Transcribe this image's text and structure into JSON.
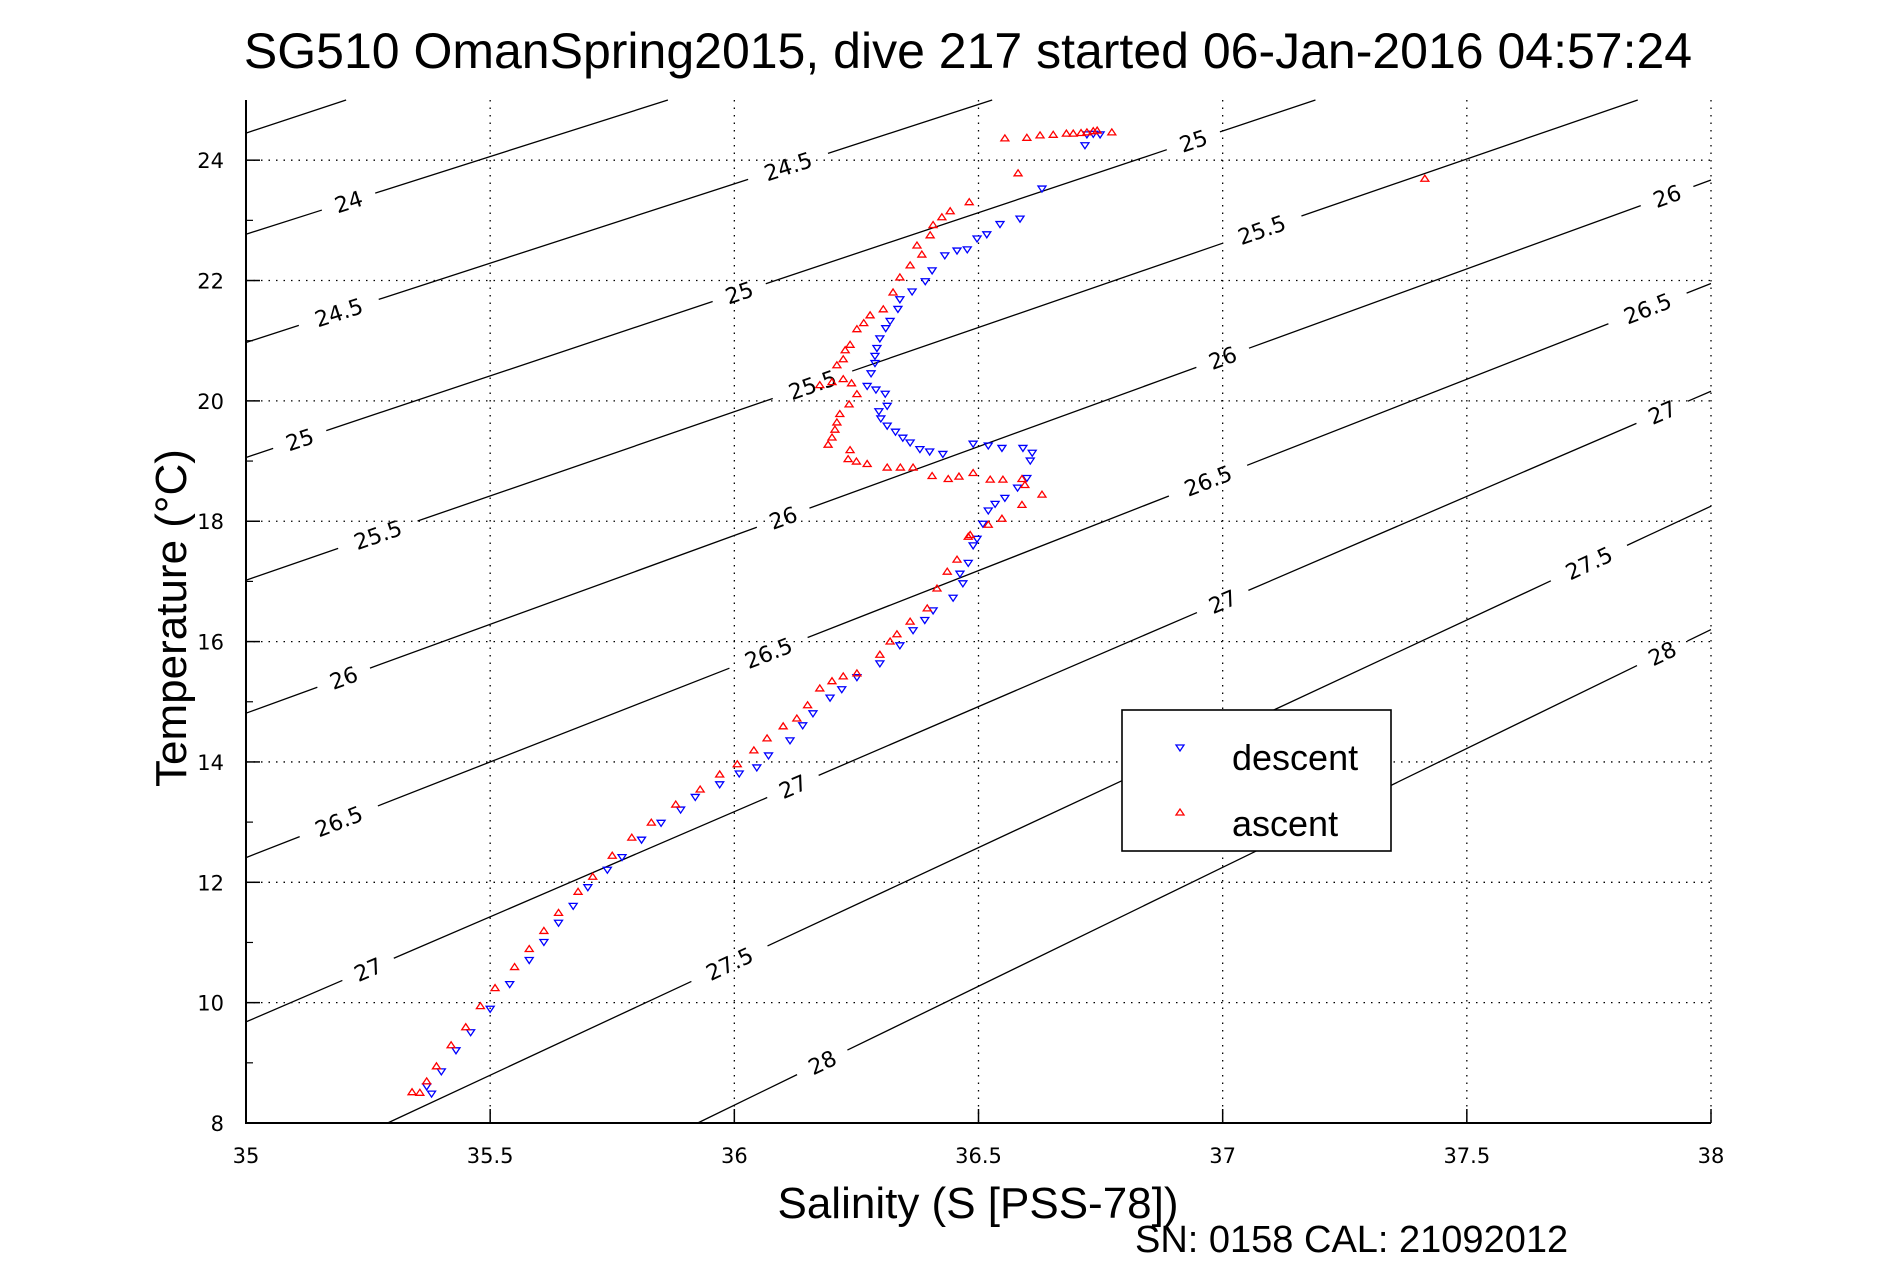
{
  "chart_data": {
    "type": "scatter",
    "title": "SG510 OmanSpring2015, dive 217 started 06-Jan-2016 04:57:24",
    "xlabel": "Salinity (S [PSS-78])",
    "ylabel": "Temperature (°C)",
    "footer": "SN: 0158  CAL: 21092012",
    "xlim": [
      35,
      38
    ],
    "ylim": [
      8,
      25
    ],
    "grid": true,
    "legend_position": "center-right",
    "x_ticks": [
      35,
      35.5,
      36,
      36.5,
      37,
      37.5,
      38
    ],
    "x_tick_labels": [
      "35",
      "35.5",
      "36",
      "36.5",
      "37",
      "37.5",
      "38"
    ],
    "y_ticks": [
      8,
      10,
      12,
      14,
      16,
      18,
      20,
      22,
      24
    ],
    "y_tick_labels": [
      "8",
      "10",
      "12",
      "14",
      "16",
      "18",
      "20",
      "22",
      "24"
    ],
    "y_minor_ticks": [
      9,
      11,
      13,
      15,
      17,
      19,
      21,
      23
    ],
    "isopycnals": [
      {
        "sigma": 23.5,
        "points": [
          [
            35,
            24.45
          ],
          [
            35.205,
            25
          ]
        ],
        "labels": []
      },
      {
        "sigma": 24,
        "points": [
          [
            35,
            22.77
          ],
          [
            35.864,
            25
          ]
        ],
        "labels": [
          {
            "text": "24",
            "s": 35.21
          }
        ]
      },
      {
        "sigma": 24.5,
        "points": [
          [
            35,
            20.97
          ],
          [
            36.528,
            25
          ]
        ],
        "labels": [
          {
            "text": "24.5",
            "s": 35.19
          },
          {
            "text": "24.5",
            "s": 36.11
          }
        ]
      },
      {
        "sigma": 25,
        "points": [
          [
            35,
            19.06
          ],
          [
            37.19,
            25
          ]
        ],
        "labels": [
          {
            "text": "25",
            "s": 35.11
          },
          {
            "text": "25",
            "s": 36.01
          },
          {
            "text": "25",
            "s": 36.94
          }
        ]
      },
      {
        "sigma": 25.5,
        "points": [
          [
            35,
            17.02
          ],
          [
            37.85,
            25
          ]
        ],
        "labels": [
          {
            "text": "25.5",
            "s": 35.27
          },
          {
            "text": "25.5",
            "s": 36.16
          },
          {
            "text": "25.5",
            "s": 37.08
          }
        ]
      },
      {
        "sigma": 26,
        "points": [
          [
            35,
            14.81
          ],
          [
            38,
            23.67
          ]
        ],
        "labels": [
          {
            "text": "26",
            "s": 35.2
          },
          {
            "text": "26",
            "s": 36.1
          },
          {
            "text": "26",
            "s": 37.0
          },
          {
            "text": "26",
            "s": 37.91
          }
        ]
      },
      {
        "sigma": 26.5,
        "points": [
          [
            35,
            12.41
          ],
          [
            38,
            21.95
          ]
        ],
        "labels": [
          {
            "text": "26.5",
            "s": 35.19
          },
          {
            "text": "26.5",
            "s": 36.07
          },
          {
            "text": "26.5",
            "s": 36.97
          },
          {
            "text": "26.5",
            "s": 37.87
          }
        ]
      },
      {
        "sigma": 27,
        "points": [
          [
            35,
            9.68
          ],
          [
            38,
            20.16
          ]
        ],
        "labels": [
          {
            "text": "27",
            "s": 35.25
          },
          {
            "text": "27",
            "s": 36.12
          },
          {
            "text": "27",
            "s": 37.0
          },
          {
            "text": "27",
            "s": 37.9
          }
        ]
      },
      {
        "sigma": 27.5,
        "points": [
          [
            35.29,
            8
          ],
          [
            38,
            18.25
          ]
        ],
        "labels": [
          {
            "text": "27.5",
            "s": 35.99
          },
          {
            "text": "27.5",
            "s": 37.75
          }
        ]
      },
      {
        "sigma": 28,
        "points": [
          [
            35.925,
            8
          ],
          [
            38,
            16.2
          ]
        ],
        "labels": [
          {
            "text": "28",
            "s": 36.18
          },
          {
            "text": "28",
            "s": 37.9
          }
        ]
      }
    ],
    "series": [
      {
        "name": "descent",
        "color": "#0000ff",
        "marker": "triangle-down",
        "points": [
          [
            35.38,
            8.48
          ],
          [
            35.37,
            8.6
          ],
          [
            35.4,
            8.85
          ],
          [
            35.43,
            9.2
          ],
          [
            35.46,
            9.5
          ],
          [
            35.5,
            9.89
          ],
          [
            35.54,
            10.3
          ],
          [
            35.58,
            10.7
          ],
          [
            35.61,
            11.0
          ],
          [
            35.64,
            11.32
          ],
          [
            35.67,
            11.6
          ],
          [
            35.7,
            11.91
          ],
          [
            35.74,
            12.2
          ],
          [
            35.77,
            12.41
          ],
          [
            35.81,
            12.7
          ],
          [
            35.85,
            12.98
          ],
          [
            35.89,
            13.2
          ],
          [
            35.92,
            13.41
          ],
          [
            35.97,
            13.62
          ],
          [
            36.01,
            13.8
          ],
          [
            36.046,
            13.9
          ],
          [
            36.07,
            14.1
          ],
          [
            36.114,
            14.35
          ],
          [
            36.14,
            14.6
          ],
          [
            36.161,
            14.8
          ],
          [
            36.196,
            15.06
          ],
          [
            36.22,
            15.2
          ],
          [
            36.251,
            15.4
          ],
          [
            36.298,
            15.63
          ],
          [
            36.339,
            15.93
          ],
          [
            36.366,
            16.18
          ],
          [
            36.39,
            16.35
          ],
          [
            36.407,
            16.51
          ],
          [
            36.448,
            16.72
          ],
          [
            36.468,
            16.96
          ],
          [
            36.462,
            17.12
          ],
          [
            36.479,
            17.3
          ],
          [
            36.489,
            17.59
          ],
          [
            36.497,
            17.7
          ],
          [
            36.509,
            17.95
          ],
          [
            36.52,
            18.17
          ],
          [
            36.534,
            18.28
          ],
          [
            36.554,
            18.38
          ],
          [
            36.58,
            18.55
          ],
          [
            36.599,
            18.71
          ],
          [
            36.606,
            19.0
          ],
          [
            36.61,
            19.13
          ],
          [
            36.591,
            19.21
          ],
          [
            36.548,
            19.21
          ],
          [
            36.52,
            19.25
          ],
          [
            36.489,
            19.28
          ],
          [
            36.427,
            19.11
          ],
          [
            36.4,
            19.15
          ],
          [
            36.38,
            19.19
          ],
          [
            36.36,
            19.3
          ],
          [
            36.345,
            19.38
          ],
          [
            36.33,
            19.48
          ],
          [
            36.313,
            19.58
          ],
          [
            36.3,
            19.7
          ],
          [
            36.296,
            19.82
          ],
          [
            36.313,
            19.91
          ],
          [
            36.309,
            20.11
          ],
          [
            36.29,
            20.18
          ],
          [
            36.272,
            20.24
          ],
          [
            36.28,
            20.45
          ],
          [
            36.288,
            20.62
          ],
          [
            36.292,
            20.87
          ],
          [
            36.288,
            20.74
          ],
          [
            36.298,
            21.03
          ],
          [
            36.31,
            21.2
          ],
          [
            36.319,
            21.32
          ],
          [
            36.335,
            21.52
          ],
          [
            36.339,
            21.68
          ],
          [
            36.364,
            21.81
          ],
          [
            36.391,
            21.98
          ],
          [
            36.405,
            22.16
          ],
          [
            36.431,
            22.41
          ],
          [
            36.456,
            22.49
          ],
          [
            36.477,
            22.51
          ],
          [
            36.497,
            22.69
          ],
          [
            36.517,
            22.76
          ],
          [
            36.544,
            22.93
          ],
          [
            36.585,
            23.02
          ],
          [
            36.63,
            23.52
          ],
          [
            36.718,
            24.24
          ],
          [
            36.722,
            24.42
          ],
          [
            36.735,
            24.43
          ],
          [
            36.749,
            24.42
          ]
        ]
      },
      {
        "name": "ascent",
        "color": "#ff0000",
        "marker": "triangle-up",
        "points": [
          [
            35.34,
            8.52
          ],
          [
            35.356,
            8.51
          ],
          [
            35.37,
            8.7
          ],
          [
            35.39,
            8.95
          ],
          [
            35.42,
            9.3
          ],
          [
            35.45,
            9.6
          ],
          [
            35.48,
            9.95
          ],
          [
            35.51,
            10.25
          ],
          [
            35.55,
            10.6
          ],
          [
            35.58,
            10.9
          ],
          [
            35.61,
            11.2
          ],
          [
            35.64,
            11.5
          ],
          [
            35.68,
            11.85
          ],
          [
            35.71,
            12.1
          ],
          [
            35.75,
            12.45
          ],
          [
            35.79,
            12.75
          ],
          [
            35.83,
            13.0
          ],
          [
            35.88,
            13.3
          ],
          [
            35.93,
            13.55
          ],
          [
            35.97,
            13.8
          ],
          [
            36.006,
            13.97
          ],
          [
            36.04,
            14.2
          ],
          [
            36.067,
            14.4
          ],
          [
            36.1,
            14.6
          ],
          [
            36.128,
            14.73
          ],
          [
            36.15,
            14.95
          ],
          [
            36.175,
            15.23
          ],
          [
            36.2,
            15.35
          ],
          [
            36.223,
            15.43
          ],
          [
            36.251,
            15.48
          ],
          [
            36.298,
            15.79
          ],
          [
            36.319,
            16.01
          ],
          [
            36.333,
            16.13
          ],
          [
            36.36,
            16.34
          ],
          [
            36.395,
            16.56
          ],
          [
            36.415,
            16.89
          ],
          [
            36.436,
            17.17
          ],
          [
            36.456,
            17.37
          ],
          [
            36.479,
            17.75
          ],
          [
            36.483,
            17.78
          ],
          [
            36.52,
            17.95
          ],
          [
            36.548,
            18.05
          ],
          [
            36.589,
            18.28
          ],
          [
            36.63,
            18.45
          ],
          [
            36.595,
            18.61
          ],
          [
            36.589,
            18.71
          ],
          [
            36.55,
            18.7
          ],
          [
            36.524,
            18.7
          ],
          [
            36.489,
            18.81
          ],
          [
            36.46,
            18.75
          ],
          [
            36.438,
            18.71
          ],
          [
            36.405,
            18.76
          ],
          [
            36.366,
            18.9
          ],
          [
            36.34,
            18.9
          ],
          [
            36.313,
            18.9
          ],
          [
            36.272,
            18.96
          ],
          [
            36.25,
            19.0
          ],
          [
            36.233,
            19.04
          ],
          [
            36.237,
            19.19
          ],
          [
            36.192,
            19.28
          ],
          [
            36.2,
            19.4
          ],
          [
            36.206,
            19.53
          ],
          [
            36.21,
            19.65
          ],
          [
            36.216,
            19.79
          ],
          [
            36.235,
            19.95
          ],
          [
            36.251,
            20.12
          ],
          [
            36.24,
            20.3
          ],
          [
            36.223,
            20.37
          ],
          [
            36.2,
            20.32
          ],
          [
            36.175,
            20.27
          ],
          [
            36.21,
            20.6
          ],
          [
            36.227,
            20.85
          ],
          [
            36.223,
            20.7
          ],
          [
            36.237,
            20.94
          ],
          [
            36.251,
            21.2
          ],
          [
            36.265,
            21.3
          ],
          [
            36.278,
            21.43
          ],
          [
            36.305,
            21.53
          ],
          [
            36.325,
            21.81
          ],
          [
            36.339,
            22.06
          ],
          [
            36.36,
            22.26
          ],
          [
            36.384,
            22.44
          ],
          [
            36.374,
            22.59
          ],
          [
            36.401,
            22.76
          ],
          [
            36.407,
            22.93
          ],
          [
            36.425,
            23.06
          ],
          [
            36.442,
            23.16
          ],
          [
            36.481,
            23.31
          ],
          [
            36.581,
            23.79
          ],
          [
            36.554,
            24.37
          ],
          [
            36.599,
            24.38
          ],
          [
            36.626,
            24.42
          ],
          [
            36.653,
            24.43
          ],
          [
            36.68,
            24.45
          ],
          [
            36.694,
            24.45
          ],
          [
            36.71,
            24.46
          ],
          [
            36.722,
            24.47
          ],
          [
            36.735,
            24.49
          ],
          [
            36.743,
            24.5
          ],
          [
            36.773,
            24.47
          ],
          [
            37.414,
            23.7
          ]
        ]
      }
    ]
  }
}
